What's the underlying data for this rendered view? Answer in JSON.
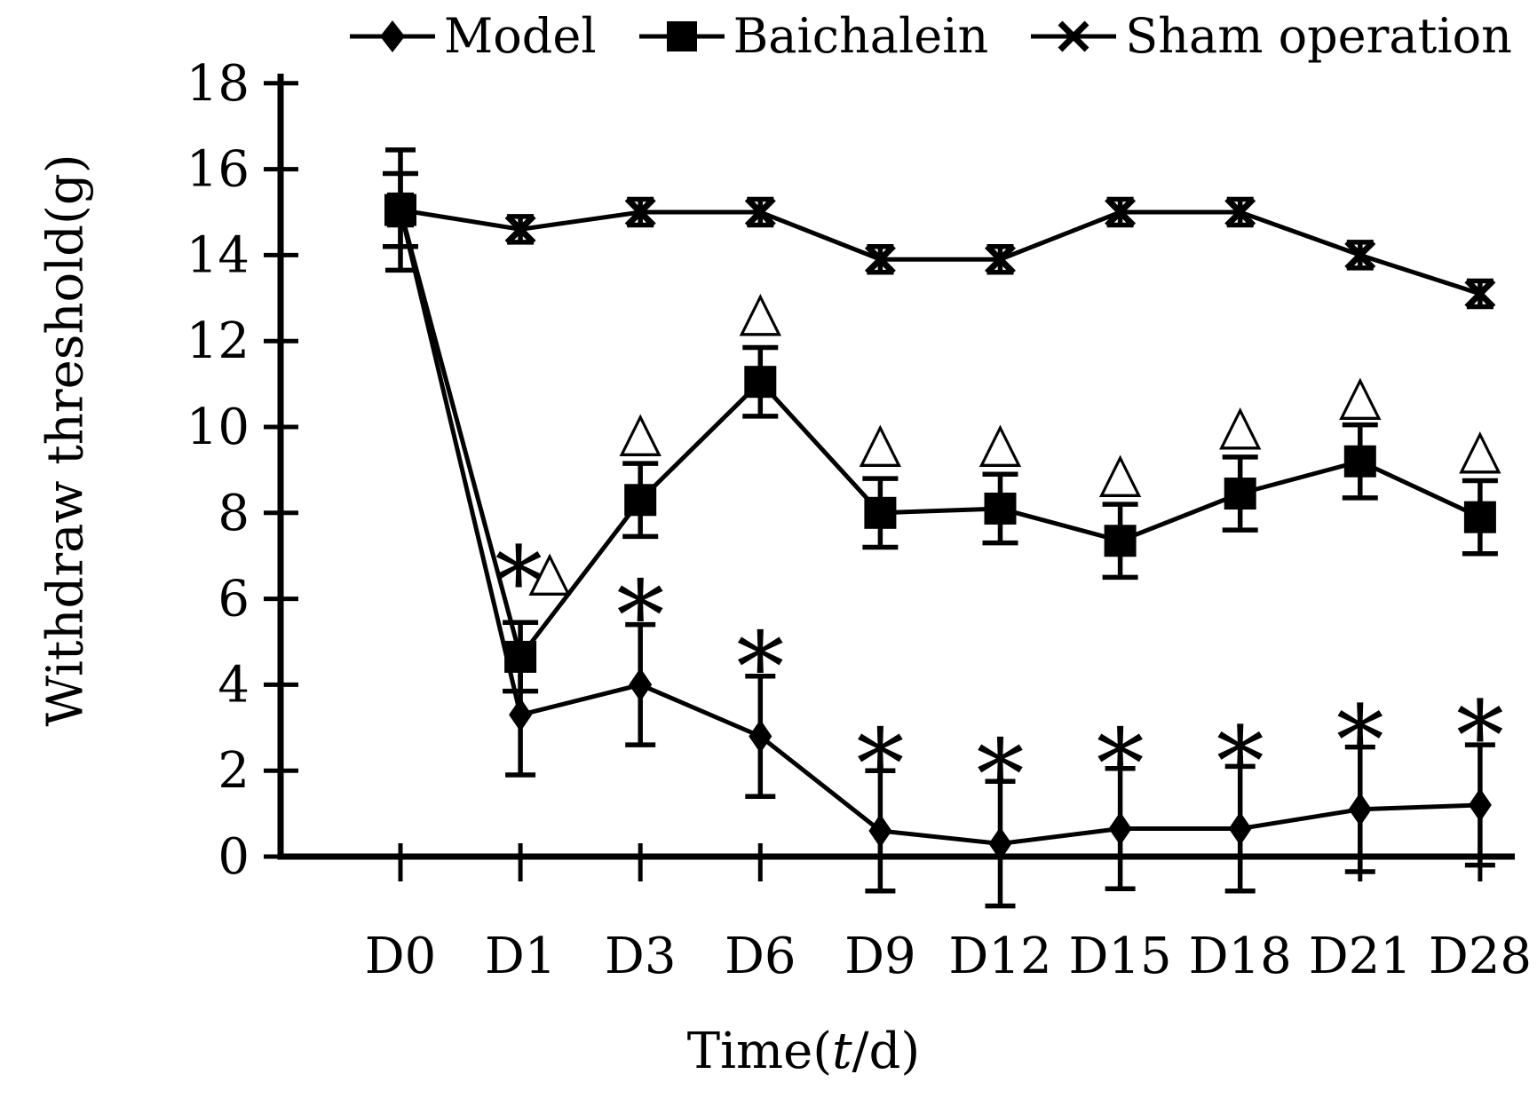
{
  "figure": {
    "background": "#ffffff",
    "ink_color": "#000000"
  },
  "legend": {
    "items": [
      {
        "label": "Model",
        "marker": "diamond"
      },
      {
        "label": "Baichalein",
        "marker": "square"
      },
      {
        "label": "Sham operation",
        "marker": "x"
      }
    ]
  },
  "y_axis": {
    "label": "Withdraw threshold(g)",
    "min": 0,
    "max": 18
  },
  "x_axis": {
    "title_prefix": "Time(",
    "title_var": "t",
    "title_suffix": "/d)"
  },
  "chart_data": {
    "type": "line",
    "title": "",
    "xlabel": "Time(t/d)",
    "ylabel": "Withdraw threshold(g)",
    "ylim": [
      0,
      18
    ],
    "y_ticks": [
      0,
      2,
      4,
      6,
      8,
      10,
      12,
      14,
      16,
      18
    ],
    "grid": false,
    "legend_position": "top",
    "categories": [
      "D0",
      "D1",
      "D3",
      "D6",
      "D9",
      "D12",
      "D15",
      "D18",
      "D21",
      "D28"
    ],
    "series": [
      {
        "name": "Model",
        "marker": "diamond",
        "values": [
          15.05,
          3.3,
          4.0,
          2.8,
          0.6,
          0.3,
          0.65,
          0.65,
          1.1,
          1.2
        ],
        "errors": [
          1.4,
          1.4,
          1.4,
          1.4,
          1.4,
          1.45,
          1.4,
          1.45,
          1.45,
          1.4
        ]
      },
      {
        "name": "Baichalein",
        "marker": "square",
        "values": [
          15.05,
          4.65,
          8.3,
          11.05,
          8.0,
          8.1,
          7.35,
          8.45,
          9.2,
          7.9
        ],
        "errors": [
          0.85,
          0.8,
          0.85,
          0.8,
          0.8,
          0.8,
          0.85,
          0.85,
          0.85,
          0.85
        ]
      },
      {
        "name": "Sham operation",
        "marker": "x",
        "values": [
          15.05,
          14.6,
          15.0,
          15.0,
          13.9,
          13.9,
          15.0,
          15.0,
          14.0,
          13.1
        ],
        "errors": [
          0.35,
          0.3,
          0.3,
          0.3,
          0.3,
          0.3,
          0.3,
          0.3,
          0.3,
          0.3
        ]
      }
    ],
    "annotations": [
      {
        "series": "Baichalein",
        "point": "D1",
        "text": "*",
        "v": 6.75,
        "dx": -2
      },
      {
        "series": "Baichalein",
        "point": "D1",
        "text": "△",
        "v": 6.7,
        "dx": 33
      },
      {
        "series": "Baichalein",
        "point": "D3",
        "text": "△",
        "v": 9.95,
        "dx": 0
      },
      {
        "series": "Baichalein",
        "point": "D6",
        "text": "△",
        "v": 12.75,
        "dx": 0
      },
      {
        "series": "Baichalein",
        "point": "D9",
        "text": "△",
        "v": 9.7,
        "dx": 0
      },
      {
        "series": "Baichalein",
        "point": "D12",
        "text": "△",
        "v": 9.7,
        "dx": 0
      },
      {
        "series": "Baichalein",
        "point": "D15",
        "text": "△",
        "v": 9.0,
        "dx": 0
      },
      {
        "series": "Baichalein",
        "point": "D18",
        "text": "△",
        "v": 10.1,
        "dx": 0
      },
      {
        "series": "Baichalein",
        "point": "D21",
        "text": "△",
        "v": 10.8,
        "dx": 0
      },
      {
        "series": "Baichalein",
        "point": "D28",
        "text": "△",
        "v": 9.55,
        "dx": 0
      },
      {
        "series": "Model",
        "point": "D3",
        "text": "*",
        "v": 5.95,
        "dx": 0
      },
      {
        "series": "Model",
        "point": "D6",
        "text": "*",
        "v": 4.75,
        "dx": 0
      },
      {
        "series": "Model",
        "point": "D9",
        "text": "*",
        "v": 2.5,
        "dx": 0
      },
      {
        "series": "Model",
        "point": "D12",
        "text": "*",
        "v": 2.25,
        "dx": 0
      },
      {
        "series": "Model",
        "point": "D15",
        "text": "*",
        "v": 2.5,
        "dx": 0
      },
      {
        "series": "Model",
        "point": "D18",
        "text": "*",
        "v": 2.55,
        "dx": 0
      },
      {
        "series": "Model",
        "point": "D21",
        "text": "*",
        "v": 3.05,
        "dx": 0
      },
      {
        "series": "Model",
        "point": "D28",
        "text": "*",
        "v": 3.15,
        "dx": 0
      }
    ]
  }
}
